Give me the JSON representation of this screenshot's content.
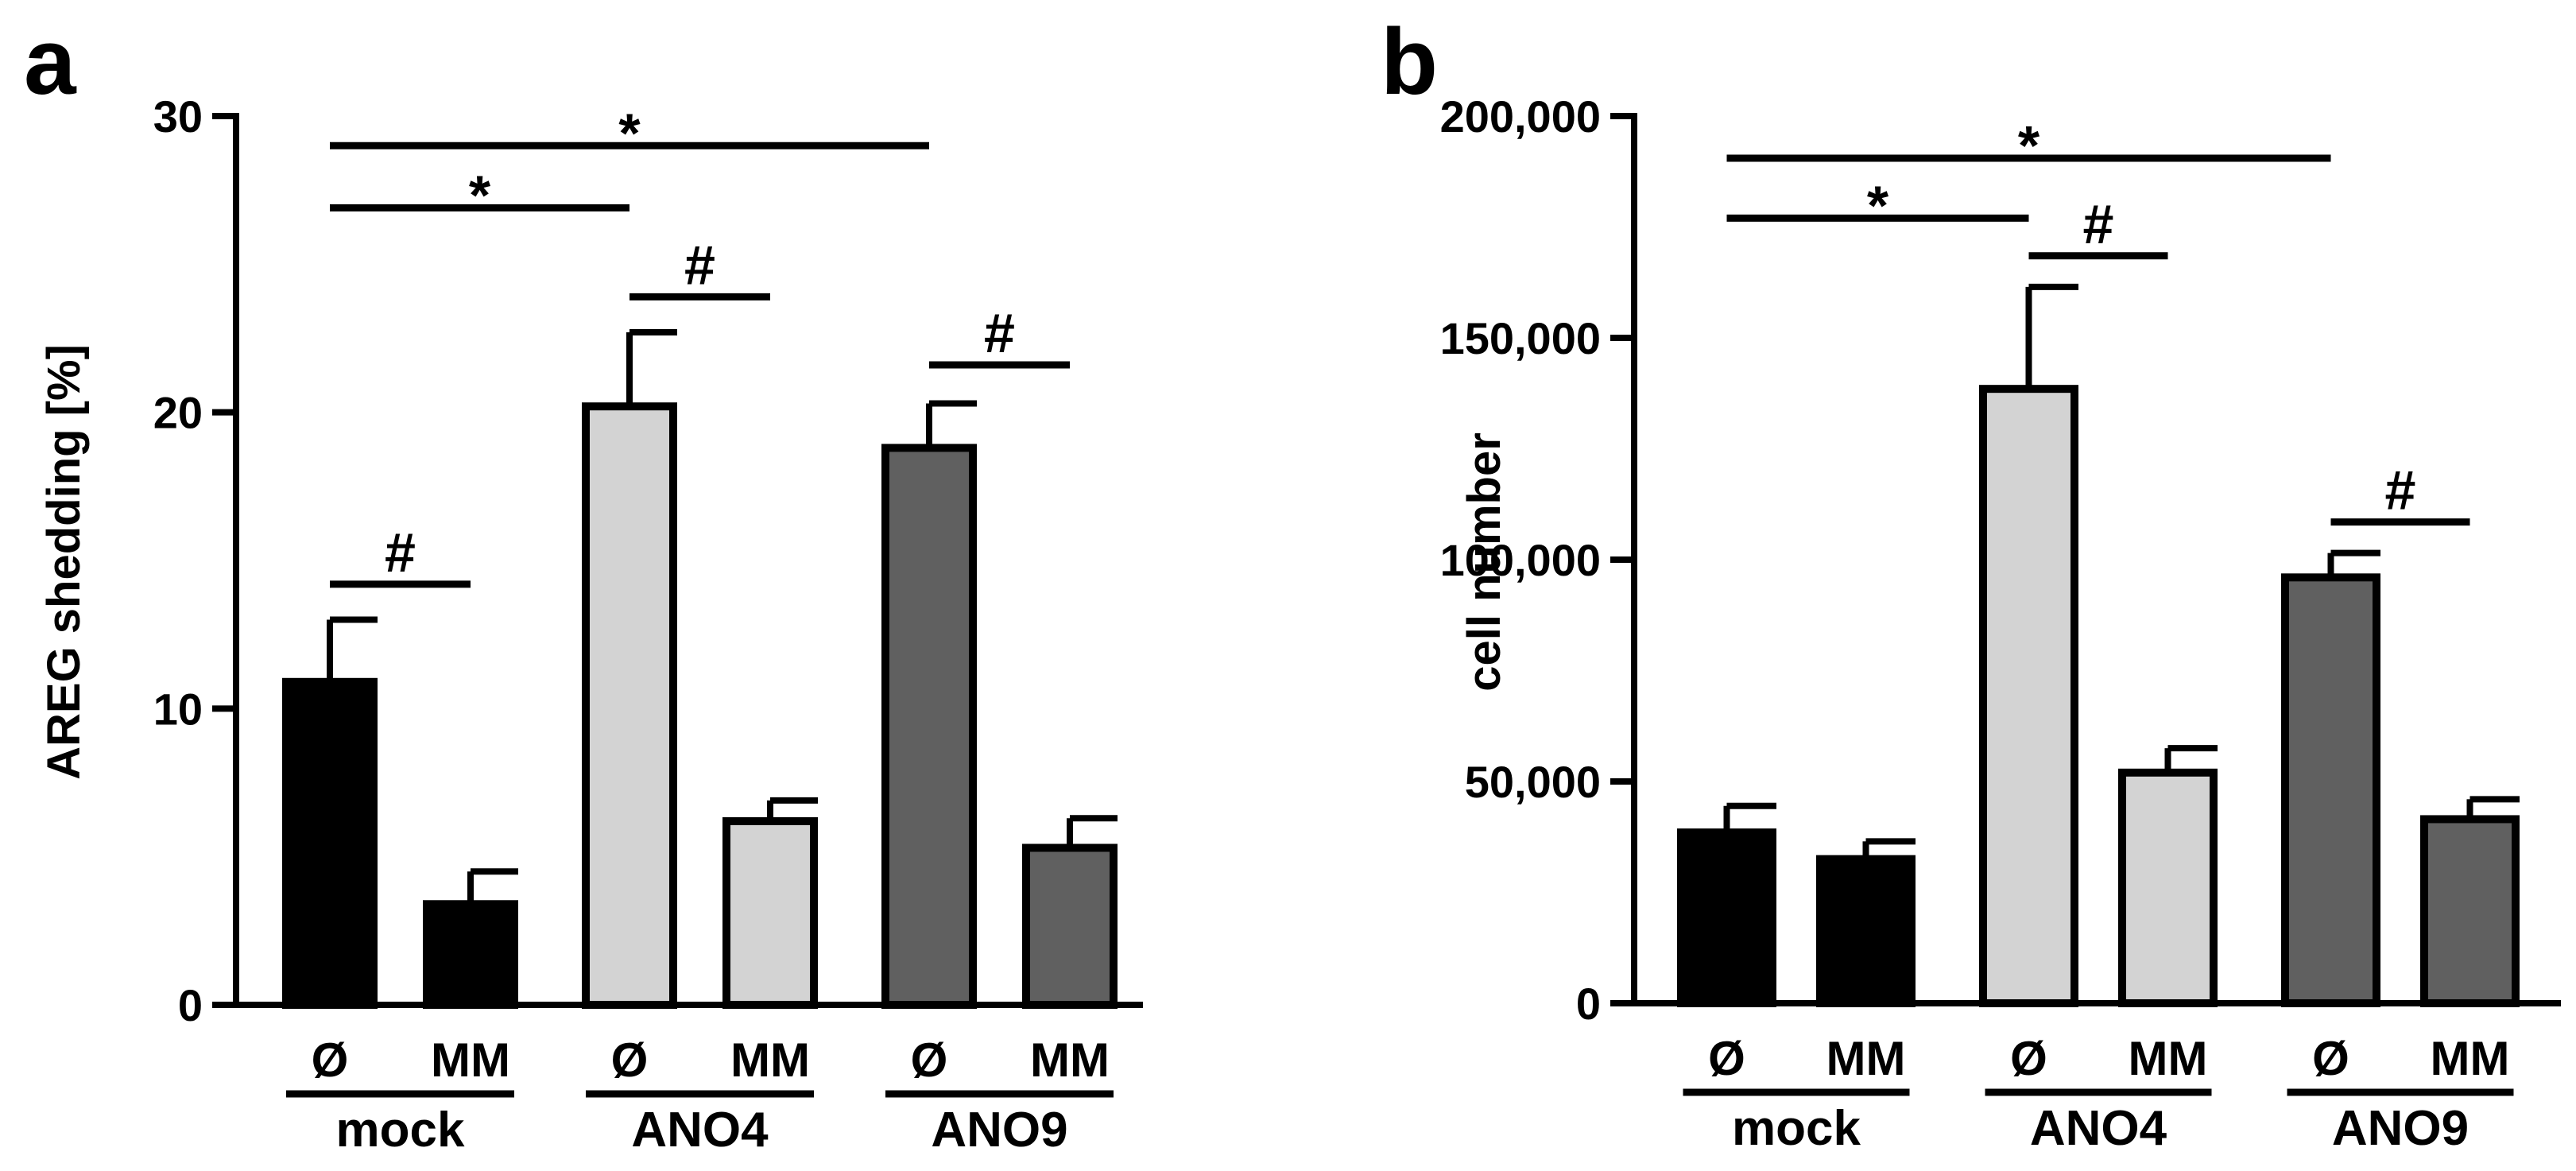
{
  "colors": {
    "mock": "#000000",
    "ANO4": "#d3d3d3",
    "ANO9": "#606060",
    "axis": "#000000"
  },
  "chart_data": [
    {
      "panel": "a",
      "type": "bar",
      "ylabel": "AREG shedding [%]",
      "ylim": [
        0,
        30
      ],
      "yticks": [
        0,
        10,
        20,
        30
      ],
      "ytick_labels": [
        "0",
        "10",
        "20",
        "30"
      ],
      "groups": [
        {
          "name": "mock",
          "color_key": "mock",
          "bars": [
            {
              "label": "Ø",
              "value": 10.9,
              "error": 2.1
            },
            {
              "label": "MM",
              "value": 3.4,
              "error": 1.1
            }
          ]
        },
        {
          "name": "ANO4",
          "color_key": "ANO4",
          "bars": [
            {
              "label": "Ø",
              "value": 20.2,
              "error": 2.5
            },
            {
              "label": "MM",
              "value": 6.2,
              "error": 0.7
            }
          ]
        },
        {
          "name": "ANO9",
          "color_key": "ANO9",
          "bars": [
            {
              "label": "Ø",
              "value": 18.8,
              "error": 1.5
            },
            {
              "label": "MM",
              "value": 5.3,
              "error": 1.0
            }
          ]
        }
      ],
      "significance": [
        {
          "symbol": "*",
          "from": 0,
          "to": 4,
          "y": 29.0
        },
        {
          "symbol": "*",
          "from": 0,
          "to": 2,
          "y": 26.9
        },
        {
          "symbol": "#",
          "from": 2,
          "to": 3,
          "y": 23.9
        },
        {
          "symbol": "#",
          "from": 4,
          "to": 5,
          "y": 21.6
        },
        {
          "symbol": "#",
          "from": 0,
          "to": 1,
          "y": 14.2
        }
      ]
    },
    {
      "panel": "b",
      "type": "bar",
      "ylabel": "cell number",
      "ylim": [
        0,
        200000
      ],
      "yticks": [
        0,
        50000,
        100000,
        150000,
        200000
      ],
      "ytick_labels": [
        "0",
        "50,000",
        "100,000",
        "150,000",
        "200,000"
      ],
      "groups": [
        {
          "name": "mock",
          "color_key": "mock",
          "bars": [
            {
              "label": "Ø",
              "value": 38500,
              "error": 6000
            },
            {
              "label": "MM",
              "value": 32500,
              "error": 4000
            }
          ]
        },
        {
          "name": "ANO4",
          "color_key": "ANO4",
          "bars": [
            {
              "label": "Ø",
              "value": 138500,
              "error": 23000
            },
            {
              "label": "MM",
              "value": 52000,
              "error": 5500
            }
          ]
        },
        {
          "name": "ANO9",
          "color_key": "ANO9",
          "bars": [
            {
              "label": "Ø",
              "value": 96000,
              "error": 5500
            },
            {
              "label": "MM",
              "value": 41500,
              "error": 4500
            }
          ]
        }
      ],
      "significance": [
        {
          "symbol": "*",
          "from": 0,
          "to": 4,
          "y": 190500
        },
        {
          "symbol": "*",
          "from": 0,
          "to": 2,
          "y": 177000
        },
        {
          "symbol": "#",
          "from": 2,
          "to": 3,
          "y": 168500
        },
        {
          "symbol": "#",
          "from": 4,
          "to": 5,
          "y": 108500
        }
      ]
    }
  ]
}
